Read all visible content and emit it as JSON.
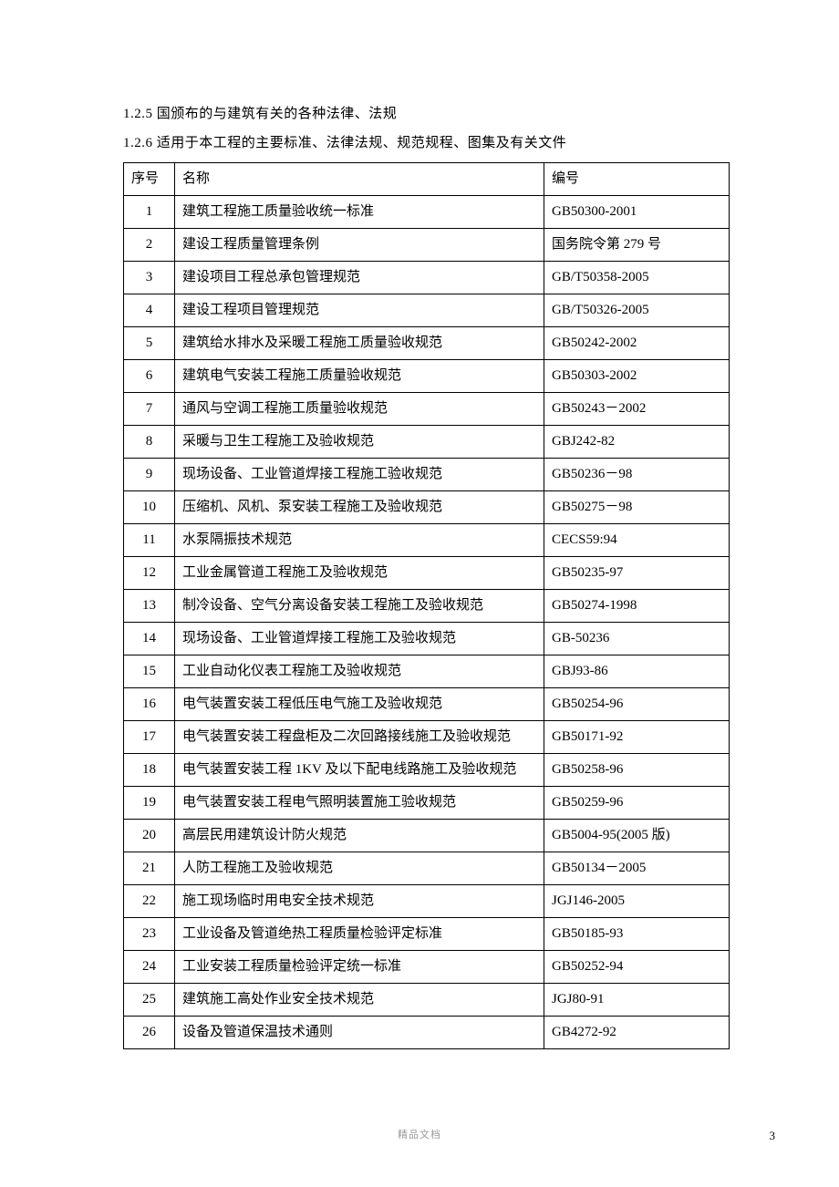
{
  "intro": {
    "line1": "1.2.5 国颁布的与建筑有关的各种法律、法规",
    "line2": "1.2.6 适用于本工程的主要标准、法律法规、规范规程、图集及有关文件"
  },
  "table": {
    "header": {
      "num": "序号",
      "name": "名称",
      "code": "编号"
    },
    "rows": [
      {
        "num": "1",
        "name": "建筑工程施工质量验收统一标准",
        "code": "GB50300-2001"
      },
      {
        "num": "2",
        "name": "建设工程质量管理条例",
        "code": "国务院令第 279 号"
      },
      {
        "num": "3",
        "name": "建设项目工程总承包管理规范",
        "code": "GB/T50358-2005"
      },
      {
        "num": "4",
        "name": "建设工程项目管理规范",
        "code": "GB/T50326-2005"
      },
      {
        "num": "5",
        "name": "建筑给水排水及采暖工程施工质量验收规范",
        "code": "GB50242-2002"
      },
      {
        "num": "6",
        "name": "建筑电气安装工程施工质量验收规范",
        "code": "GB50303-2002"
      },
      {
        "num": "7",
        "name": "通风与空调工程施工质量验收规范",
        "code": "GB50243－2002"
      },
      {
        "num": "8",
        "name": "采暖与卫生工程施工及验收规范",
        "code": "GBJ242-82"
      },
      {
        "num": "9",
        "name": "现场设备、工业管道焊接工程施工验收规范",
        "code": "GB50236－98"
      },
      {
        "num": "10",
        "name": "压缩机、风机、泵安装工程施工及验收规范",
        "code": "GB50275－98"
      },
      {
        "num": "11",
        "name": "水泵隔振技术规范",
        "code": "CECS59:94"
      },
      {
        "num": "12",
        "name": "工业金属管道工程施工及验收规范",
        "code": "GB50235-97"
      },
      {
        "num": "13",
        "name": "制冷设备、空气分离设备安装工程施工及验收规范",
        "code": "GB50274-1998"
      },
      {
        "num": "14",
        "name": "现场设备、工业管道焊接工程施工及验收规范",
        "code": "GB-50236"
      },
      {
        "num": "15",
        "name": "工业自动化仪表工程施工及验收规范",
        "code": "GBJ93-86"
      },
      {
        "num": "16",
        "name": "电气装置安装工程低压电气施工及验收规范",
        "code": "GB50254-96"
      },
      {
        "num": "17",
        "name": "电气装置安装工程盘柜及二次回路接线施工及验收规范",
        "code": "GB50171-92"
      },
      {
        "num": "18",
        "name": "电气装置安装工程 1KV 及以下配电线路施工及验收规范",
        "code": "GB50258-96"
      },
      {
        "num": "19",
        "name": "电气装置安装工程电气照明装置施工验收规范",
        "code": "GB50259-96"
      },
      {
        "num": "20",
        "name": "高层民用建筑设计防火规范",
        "code": "GB5004-95(2005 版)"
      },
      {
        "num": "21",
        "name": "人防工程施工及验收规范",
        "code": "GB50134－2005"
      },
      {
        "num": "22",
        "name": "施工现场临时用电安全技术规范",
        "code": "JGJ146-2005"
      },
      {
        "num": "23",
        "name": "工业设备及管道绝热工程质量检验评定标准",
        "code": "GB50185-93"
      },
      {
        "num": "24",
        "name": "工业安装工程质量检验评定统一标准",
        "code": "GB50252-94"
      },
      {
        "num": "25",
        "name": "建筑施工高处作业安全技术规范",
        "code": "JGJ80-91"
      },
      {
        "num": "26",
        "name": "设备及管道保温技术通则",
        "code": "GB4272-92"
      }
    ]
  },
  "footer": {
    "center": "精品文档",
    "page": "3"
  }
}
